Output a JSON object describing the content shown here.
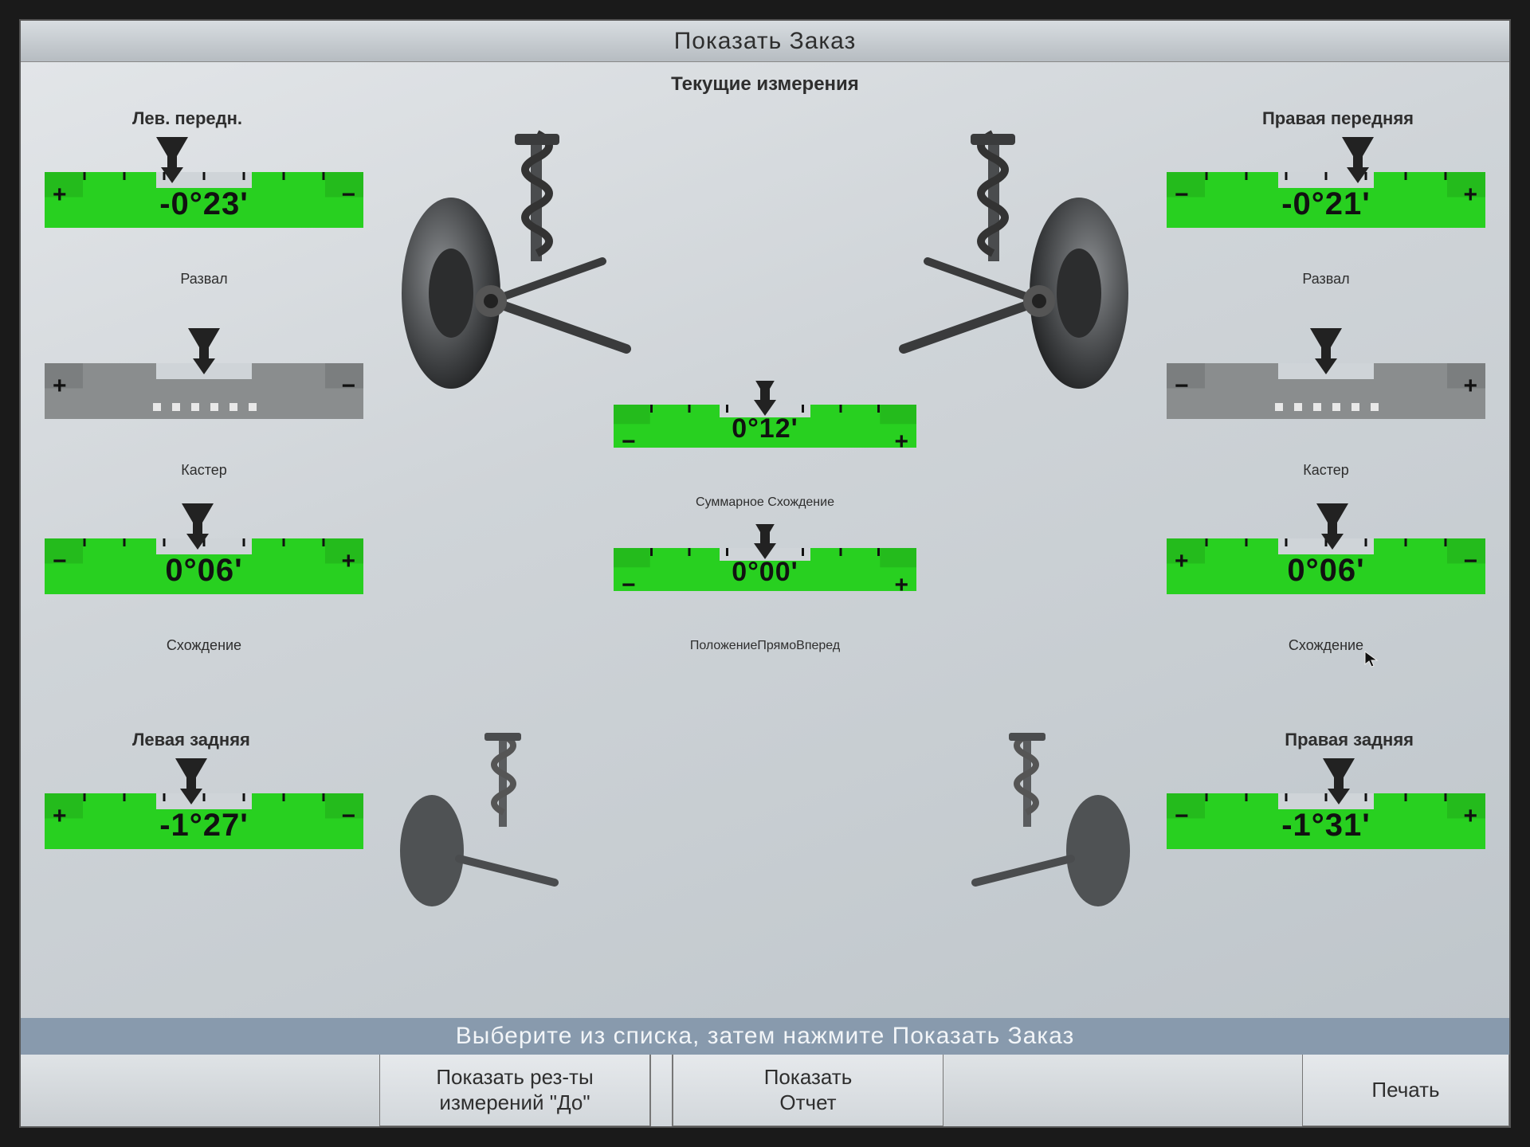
{
  "window": {
    "title": "Показать Заказ",
    "subtitle": "Текущие измерения"
  },
  "labels": {
    "left_front": "Лев. передн.",
    "right_front": "Правая передняя",
    "left_rear": "Левая задняя",
    "right_rear": "Правая задняя"
  },
  "gauge_style": {
    "ok_fill": "#28d020",
    "ok_fill_shadow": "#1fa518",
    "na_fill": "#8a8d8e",
    "na_fill_shadow": "#6c6f70",
    "pointer_fill": "#222222",
    "tick_color": "#111111",
    "dot_color": "#e8e8e8"
  },
  "gauges": {
    "lf_camber": {
      "value": "-0°23'",
      "caption": "Развал",
      "status": "ok",
      "pointer_pos": 0.4,
      "left_sign": "+",
      "right_sign": "−"
    },
    "lf_caster": {
      "value": "",
      "caption": "Кастер",
      "status": "na",
      "pointer_pos": 0.5,
      "left_sign": "+",
      "right_sign": "−"
    },
    "lf_toe": {
      "value": "0°06'",
      "caption": "Схождение",
      "status": "ok",
      "pointer_pos": 0.48,
      "left_sign": "−",
      "right_sign": "+"
    },
    "rf_camber": {
      "value": "-0°21'",
      "caption": "Развал",
      "status": "ok",
      "pointer_pos": 0.6,
      "left_sign": "−",
      "right_sign": "+"
    },
    "rf_caster": {
      "value": "",
      "caption": "Кастер",
      "status": "na",
      "pointer_pos": 0.5,
      "left_sign": "−",
      "right_sign": "+"
    },
    "rf_toe": {
      "value": "0°06'",
      "caption": "Схождение",
      "status": "ok",
      "pointer_pos": 0.52,
      "left_sign": "+",
      "right_sign": "−"
    },
    "total_toe": {
      "value": "0°12'",
      "caption": "Суммарное Схождение",
      "status": "ok",
      "pointer_pos": 0.5,
      "left_sign": "−",
      "right_sign": "+"
    },
    "thrust": {
      "value": "0°00'",
      "caption": "ПоложениеПрямоВперед",
      "status": "ok",
      "pointer_pos": 0.5,
      "left_sign": "−",
      "right_sign": "+"
    },
    "lr_camber": {
      "value": "-1°27'",
      "caption": "",
      "status": "ok",
      "pointer_pos": 0.46,
      "left_sign": "+",
      "right_sign": "−"
    },
    "rr_camber": {
      "value": "-1°31'",
      "caption": "",
      "status": "ok",
      "pointer_pos": 0.54,
      "left_sign": "−",
      "right_sign": "+"
    }
  },
  "hint": "Выберите из списка, затем нажмите Показать Заказ",
  "buttons": {
    "show_before": "Показать рез-ты\nизмерений \"До\"",
    "show_report": "Показать\nОтчет",
    "print": "Печать"
  }
}
